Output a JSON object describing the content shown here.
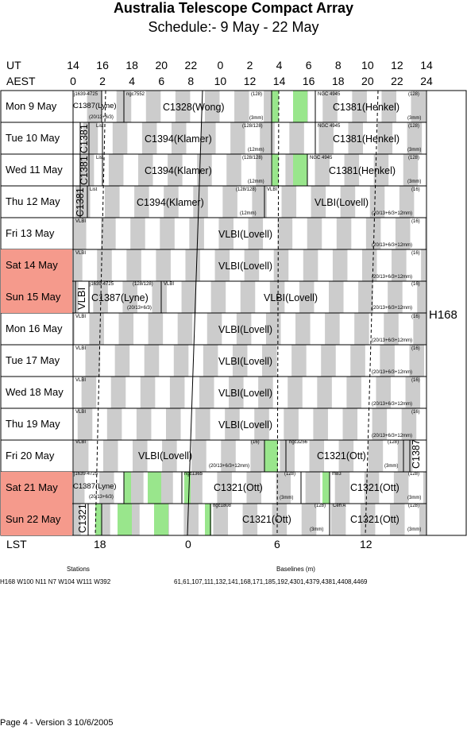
{
  "title": "Australia Telescope Compact Array",
  "subtitle": "Schedule:- 9  May - 22 May",
  "axes": {
    "ut_label": "UT",
    "aest_label": "AEST",
    "lst_label": "LST",
    "ut_ticks": [
      "14",
      "16",
      "18",
      "20",
      "22",
      "0",
      "2",
      "4",
      "6",
      "8",
      "10",
      "12",
      "14"
    ],
    "aest_ticks": [
      "0",
      "2",
      "4",
      "6",
      "8",
      "10",
      "12",
      "14",
      "16",
      "18",
      "20",
      "22",
      "24"
    ],
    "lst_ticks": [
      "18",
      "0",
      "6",
      "12"
    ]
  },
  "array_config": "H168",
  "days": [
    {
      "label": "Mon  9  May",
      "weekend": false
    },
    {
      "label": "Tue  10 May",
      "weekend": false
    },
    {
      "label": "Wed 11 May",
      "weekend": false
    },
    {
      "label": "Thu  12 May",
      "weekend": false
    },
    {
      "label": "Fri    13 May",
      "weekend": false
    },
    {
      "label": "Sat  14 May",
      "weekend": true
    },
    {
      "label": "Sun  15 May",
      "weekend": true
    },
    {
      "label": "Mon  16 May",
      "weekend": false
    },
    {
      "label": "Tue  17 May",
      "weekend": false
    },
    {
      "label": "Wed  18 May",
      "weekend": false
    },
    {
      "label": "Thu  19 May",
      "weekend": false
    },
    {
      "label": "Fri    20 May",
      "weekend": false
    },
    {
      "label": "Sat   21 May",
      "weekend": true
    },
    {
      "label": "Sun  22 May",
      "weekend": true
    }
  ],
  "blocks": {
    "r0": {
      "a_src": "j1639-4725",
      "a_name": "C1387(Lyne)",
      "a_cfg": "(20/13+6/3)",
      "b_src": "ngc7552",
      "b_name": "C1328(Wong)",
      "b_cfg": "(3mm)",
      "b_ch": "(128)",
      "c_src": "NGC 4945",
      "c_name": "C1381(Henkel)",
      "c_ch": "(128)",
      "c_cfg": "(3mm)"
    },
    "r1": {
      "a_name": "C1381",
      "a_src": "List",
      "b_name": "C1394(Klamer)",
      "b_ch": "(128/128)",
      "b_cfg": "(12mm)",
      "c_src": "NGC 4945",
      "c_name": "C1381(Henkel)",
      "c_ch": "(128)",
      "c_cfg": "(3mm)"
    },
    "r2": {
      "a_name": "C1381",
      "a_src": "List",
      "b_name": "C1394(Klamer)",
      "b_ch": "(128/128)",
      "b_cfg": "(12mm)",
      "c_src": "NGC 4945",
      "c_name": "C1381(Henkel)",
      "c_ch": "(128)",
      "c_cfg": "(3mm)"
    },
    "r3": {
      "a_name": "C1381",
      "a_src": "List",
      "b_name": "C1394(Klamer)",
      "b_ch": "(128/128)",
      "b_cfg": "(12mm)",
      "c_src": "VLBI",
      "c_name": "VLBI(Lovell)",
      "c_ch": "(16)",
      "c_cfg": "(20/13+6/3+12mm)"
    },
    "vlbi": {
      "src": "VLBI",
      "name": "VLBI(Lovell)",
      "ch": "(16)",
      "cfg": "(20/13+6/3+12mm)"
    },
    "r6": {
      "a_name": "VLBI",
      "a_src": "j1639-4725",
      "b_name": "C1387(Lyne)",
      "b_ch": "(128/128)",
      "b_cfg": "(20/13+6/3)",
      "c_src": "VLBI",
      "c_name": "VLBI(Lovell)",
      "c_ch": "(16)",
      "c_cfg": "(20/13+6/3+12mm)"
    },
    "r11": {
      "a_src": "VLBI",
      "a_name": "VLBI(Lovell)",
      "a_ch": "(16)",
      "a_cfg": "(20/13+6/3+12mm)",
      "b_src": "ngc3256",
      "b_name": "C1321(Ott)",
      "b_ch": "(128)",
      "b_cfg": "(3mm)",
      "c_name": "C1387"
    },
    "r12": {
      "a_src": "j1639-4725",
      "a_name": "C1387(Lyne)",
      "a_cfg": "(20/13+6/3)",
      "b_src": "ngc1365",
      "b_name": "C1321(Ott)",
      "b_ch": "(128)",
      "b_cfg": "(3mm)",
      "c_src": "m83",
      "c_name": "C1321(Ott)",
      "c_ch": "(128)",
      "c_cfg": "(3mm)"
    },
    "r13": {
      "a_name": "C1321",
      "b_src": "ngc1808",
      "b_name": "C1321(Ott)",
      "b_ch": "(128)",
      "b_cfg": "(3mm)",
      "c_src": "Cen A",
      "c_name": "C1321(Ott)",
      "c_ch": "(128)",
      "c_cfg": "(3mm)"
    }
  },
  "footer": {
    "stations_label": "Stations",
    "stations_value": "H168   W100  N11  N7  W104  W111  W392",
    "baselines_label": "Baselines (m)",
    "baselines_value": "61,61,107,111,132,141,168,171,185,192,4301,4379,4381,4408,4469",
    "page_info": "Page 4 - Version 3  10/6/2005"
  },
  "colors": {
    "weekend": "#f59a8c",
    "grey_band": "#cccccc",
    "green_band": "#99e68c"
  }
}
